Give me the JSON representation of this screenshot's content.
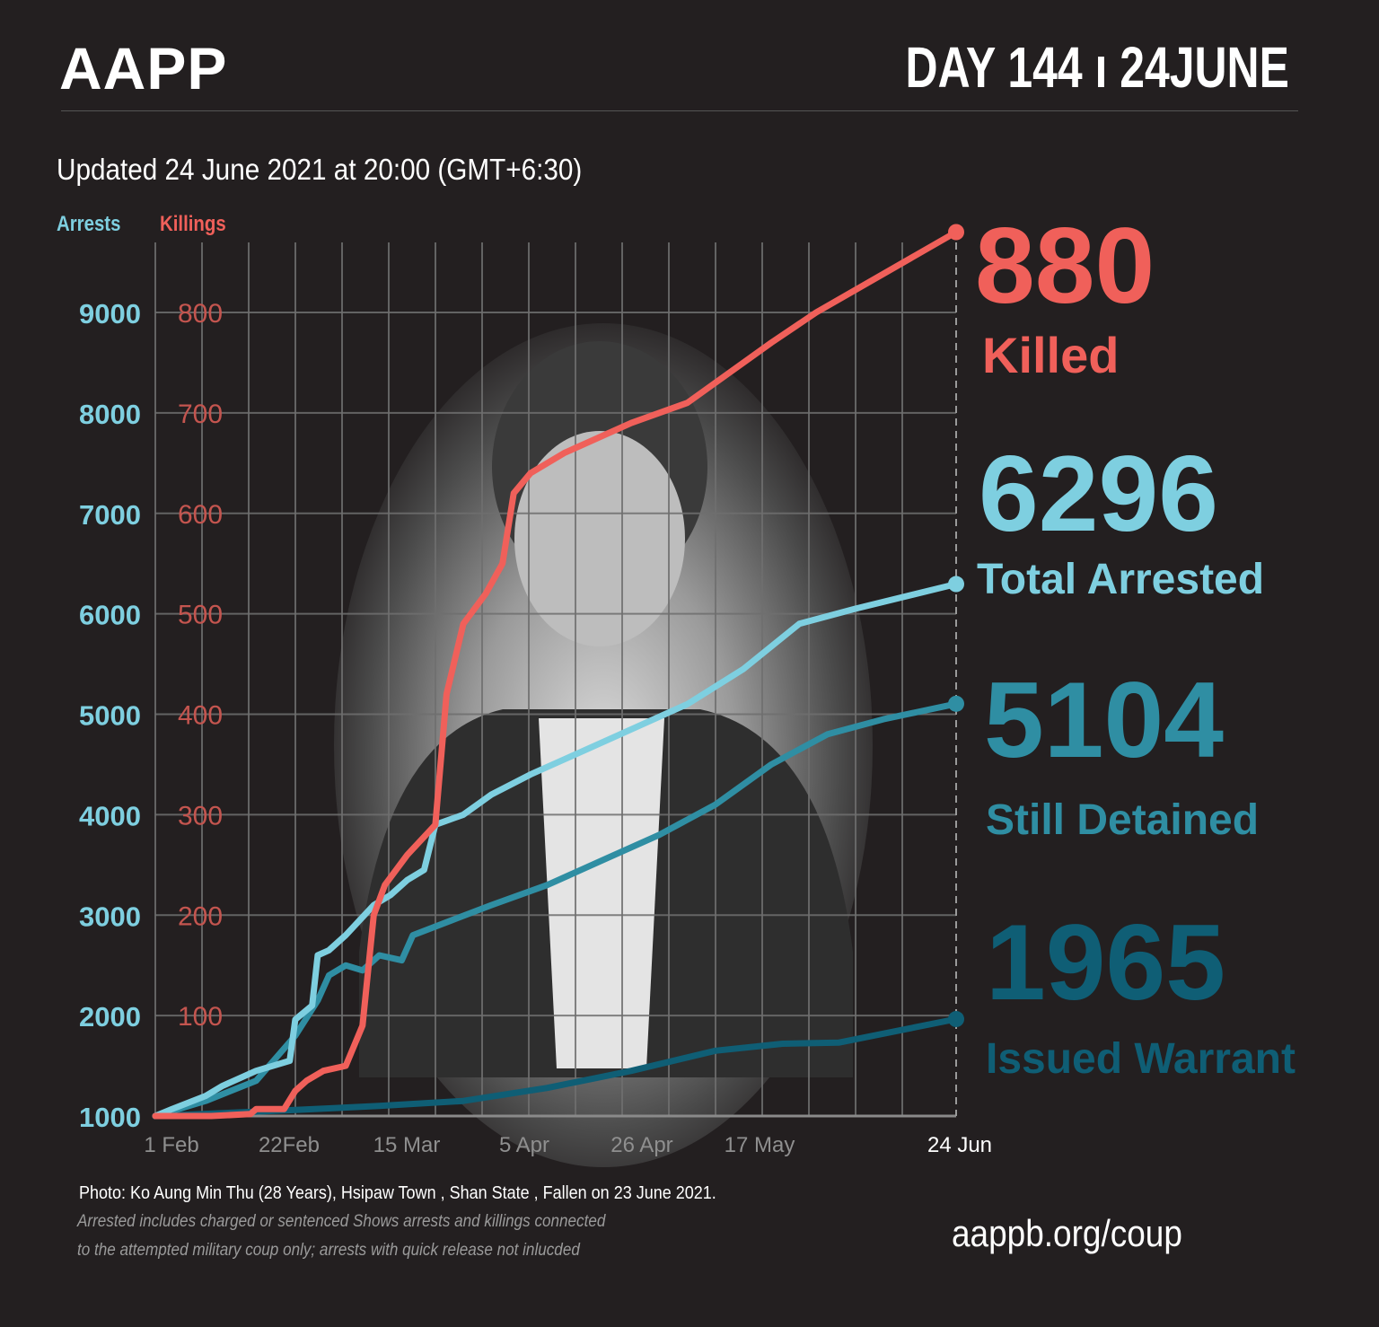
{
  "header": {
    "brand": "AAPP",
    "day": "DAY 144 ı 24JUNE",
    "updated": "Updated 24 June 2021 at 20:00 (GMT+6:30)"
  },
  "legend": {
    "arrests_label": "Arrests",
    "killings_label": "Killings"
  },
  "stats": {
    "killed": {
      "value": "880",
      "label": "Killed",
      "color": "#f0605a"
    },
    "arrested": {
      "value": "6296",
      "label": "Total Arrested",
      "color": "#7ecfe0"
    },
    "detained": {
      "value": "5104",
      "label": "Still Detained",
      "color": "#2f8ea3"
    },
    "warrant": {
      "value": "1965",
      "label": "Issued Warrant",
      "color": "#0f5e75"
    }
  },
  "footer": {
    "photo_credit": "Photo: Ko Aung Min Thu (28 Years), Hsipaw Town , Shan State  , Fallen on 23 June 2021.",
    "note_line1": "Arrested includes charged or sentenced Shows arrests and killings connected",
    "note_line2": "to the attempted military coup only; arrests with quick release not inlucded",
    "url": "aappb.org/coup"
  },
  "chart_data": {
    "type": "line",
    "title": "",
    "x_ticks": [
      "1 Feb",
      "22Feb",
      "15 Mar",
      "5 Apr",
      "26 Apr",
      "17 May",
      "24 Jun"
    ],
    "x_tick_days": [
      0,
      21,
      42,
      63,
      84,
      105,
      143
    ],
    "xlim": [
      0,
      143
    ],
    "y_left_label": "Arrests",
    "y_left_ticks": [
      1000,
      2000,
      3000,
      4000,
      5000,
      6000,
      7000,
      8000,
      9000
    ],
    "y_left_lim": [
      1000,
      9000
    ],
    "y_right_label": "Killings",
    "y_right_ticks": [
      100,
      200,
      300,
      400,
      500,
      600,
      700,
      800
    ],
    "y_right_lim": [
      0,
      800
    ],
    "grid": true,
    "series": [
      {
        "name": "Killings",
        "axis": "right",
        "color": "#f0605a",
        "points": [
          [
            0,
            0
          ],
          [
            10,
            0
          ],
          [
            17,
            2
          ],
          [
            18,
            7
          ],
          [
            23,
            7
          ],
          [
            25,
            25
          ],
          [
            27,
            35
          ],
          [
            30,
            45
          ],
          [
            34,
            50
          ],
          [
            37,
            90
          ],
          [
            39,
            200
          ],
          [
            41,
            230
          ],
          [
            45,
            260
          ],
          [
            50,
            290
          ],
          [
            52,
            420
          ],
          [
            55,
            490
          ],
          [
            59,
            520
          ],
          [
            62,
            550
          ],
          [
            64,
            620
          ],
          [
            67,
            640
          ],
          [
            73,
            660
          ],
          [
            85,
            690
          ],
          [
            95,
            710
          ],
          [
            100,
            730
          ],
          [
            110,
            770
          ],
          [
            118,
            800
          ],
          [
            143,
            880
          ]
        ]
      },
      {
        "name": "Total Arrested",
        "axis": "left",
        "color": "#7ecfe0",
        "points": [
          [
            0,
            1000
          ],
          [
            3,
            1070
          ],
          [
            9,
            1200
          ],
          [
            12,
            1300
          ],
          [
            18,
            1450
          ],
          [
            24,
            1550
          ],
          [
            25,
            1960
          ],
          [
            28,
            2100
          ],
          [
            29,
            2600
          ],
          [
            31,
            2650
          ],
          [
            34,
            2800
          ],
          [
            39,
            3100
          ],
          [
            42,
            3200
          ],
          [
            45,
            3350
          ],
          [
            48,
            3450
          ],
          [
            50,
            3900
          ],
          [
            55,
            4000
          ],
          [
            60,
            4200
          ],
          [
            67,
            4400
          ],
          [
            75,
            4600
          ],
          [
            85,
            4850
          ],
          [
            95,
            5100
          ],
          [
            105,
            5450
          ],
          [
            115,
            5900
          ],
          [
            125,
            6050
          ],
          [
            143,
            6296
          ]
        ]
      },
      {
        "name": "Still Detained",
        "axis": "left",
        "color": "#2f8ea3",
        "points": [
          [
            0,
            1000
          ],
          [
            9,
            1150
          ],
          [
            18,
            1350
          ],
          [
            25,
            1800
          ],
          [
            29,
            2150
          ],
          [
            31,
            2400
          ],
          [
            34,
            2500
          ],
          [
            37,
            2450
          ],
          [
            40,
            2600
          ],
          [
            44,
            2550
          ],
          [
            46,
            2800
          ],
          [
            53,
            2950
          ],
          [
            60,
            3100
          ],
          [
            70,
            3300
          ],
          [
            80,
            3550
          ],
          [
            90,
            3800
          ],
          [
            100,
            4100
          ],
          [
            110,
            4500
          ],
          [
            120,
            4800
          ],
          [
            130,
            4950
          ],
          [
            143,
            5104
          ]
        ]
      },
      {
        "name": "Issued Warrant",
        "axis": "left",
        "color": "#0f5e75",
        "points": [
          [
            0,
            1000
          ],
          [
            25,
            1060
          ],
          [
            40,
            1100
          ],
          [
            55,
            1150
          ],
          [
            70,
            1280
          ],
          [
            85,
            1450
          ],
          [
            100,
            1650
          ],
          [
            112,
            1720
          ],
          [
            122,
            1730
          ],
          [
            143,
            1965
          ]
        ]
      }
    ]
  }
}
